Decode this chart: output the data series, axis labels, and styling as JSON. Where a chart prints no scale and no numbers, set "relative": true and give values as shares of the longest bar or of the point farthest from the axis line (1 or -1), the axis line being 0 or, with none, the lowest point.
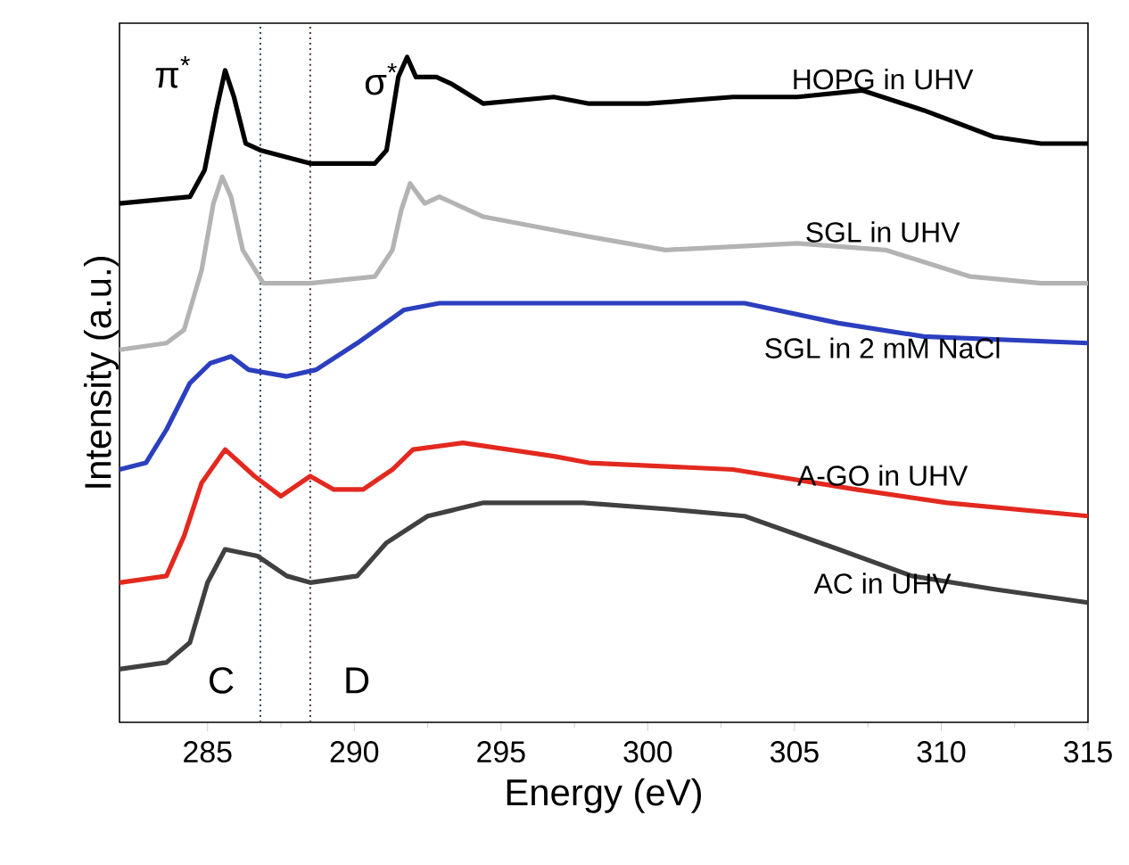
{
  "chart_data": {
    "type": "line",
    "xlabel": "Energy (eV)",
    "ylabel": "Intensity (a.u.)",
    "relative": true,
    "xlim": [
      282,
      315
    ],
    "xticks": [
      285,
      290,
      295,
      300,
      305,
      310,
      315
    ],
    "series": [
      {
        "name": "HOPG in UHV",
        "color": "#000000",
        "x": [
          282,
          284.4,
          284.9,
          285.3,
          285.6,
          285.9,
          286.3,
          286.8,
          288.5,
          290.7,
          291.1,
          291.5,
          291.8,
          292.1,
          292.8,
          293.3,
          294.4,
          296.8,
          298,
          300,
          302.9,
          303.7,
          305.1,
          307.3,
          309.4,
          311.8,
          313.4,
          315
        ],
        "values": [
          0.78,
          0.79,
          0.83,
          0.92,
          0.98,
          0.94,
          0.87,
          0.86,
          0.84,
          0.84,
          0.86,
          0.97,
          1.0,
          0.97,
          0.97,
          0.96,
          0.93,
          0.94,
          0.93,
          0.93,
          0.94,
          0.94,
          0.94,
          0.95,
          0.92,
          0.88,
          0.87,
          0.87
        ]
      },
      {
        "name": "SGL in UHV",
        "color": "#b3b3b3",
        "x": [
          282,
          283.6,
          284.2,
          284.8,
          285.2,
          285.5,
          285.8,
          286.2,
          286.9,
          288.5,
          290.7,
          291.3,
          291.6,
          291.9,
          292.4,
          292.9,
          294.4,
          296.8,
          298,
          300.6,
          305.1,
          308.1,
          311,
          313.4,
          315
        ],
        "values": [
          0.56,
          0.57,
          0.59,
          0.68,
          0.78,
          0.82,
          0.79,
          0.71,
          0.66,
          0.66,
          0.67,
          0.71,
          0.77,
          0.81,
          0.78,
          0.79,
          0.76,
          0.74,
          0.73,
          0.71,
          0.72,
          0.71,
          0.67,
          0.66,
          0.66
        ]
      },
      {
        "name": "SGL in 2 mM NaCl",
        "color": "#2b3fbf",
        "x": [
          282,
          282.9,
          283.6,
          284.4,
          285.1,
          285.8,
          286.4,
          287.7,
          288.7,
          290.1,
          291.7,
          292.9,
          295.8,
          298,
          303.3,
          306.5,
          309.4,
          315
        ],
        "values": [
          0.38,
          0.39,
          0.44,
          0.51,
          0.54,
          0.55,
          0.53,
          0.52,
          0.53,
          0.57,
          0.62,
          0.63,
          0.63,
          0.63,
          0.63,
          0.6,
          0.58,
          0.57
        ]
      },
      {
        "name": "A-GO in UHV",
        "color": "#e3291f",
        "x": [
          282,
          283.6,
          284.2,
          284.8,
          285.6,
          286.6,
          287.5,
          288.5,
          289.3,
          290.3,
          291.3,
          292,
          293.7,
          296.8,
          298,
          302.9,
          307.1,
          310.2,
          315
        ],
        "values": [
          0.21,
          0.22,
          0.28,
          0.36,
          0.41,
          0.37,
          0.34,
          0.37,
          0.35,
          0.35,
          0.38,
          0.41,
          0.42,
          0.4,
          0.39,
          0.38,
          0.35,
          0.33,
          0.31
        ]
      },
      {
        "name": "AC in UHV",
        "color": "#404040",
        "x": [
          282,
          283.6,
          284.4,
          285,
          285.6,
          286.7,
          287.7,
          288.5,
          290.1,
          291.1,
          292.5,
          294.4,
          297.8,
          300.8,
          303.3,
          306.5,
          309,
          311.8,
          315
        ],
        "values": [
          0.08,
          0.09,
          0.12,
          0.21,
          0.26,
          0.25,
          0.22,
          0.21,
          0.22,
          0.27,
          0.31,
          0.33,
          0.33,
          0.32,
          0.31,
          0.26,
          0.22,
          0.2,
          0.18
        ]
      }
    ],
    "ref_lines": [
      {
        "axis": "x",
        "value": 286.8,
        "color": "#33475b",
        "line_style": "dotted"
      },
      {
        "axis": "x",
        "value": 288.5,
        "color": "#5b3333",
        "line_style": "dotted"
      }
    ],
    "annotations": [
      "π$^{*}$",
      "σ$^{*}$",
      "C",
      "D"
    ],
    "legend": false,
    "grid": false,
    "marker": "none",
    "line_style": "solid"
  }
}
